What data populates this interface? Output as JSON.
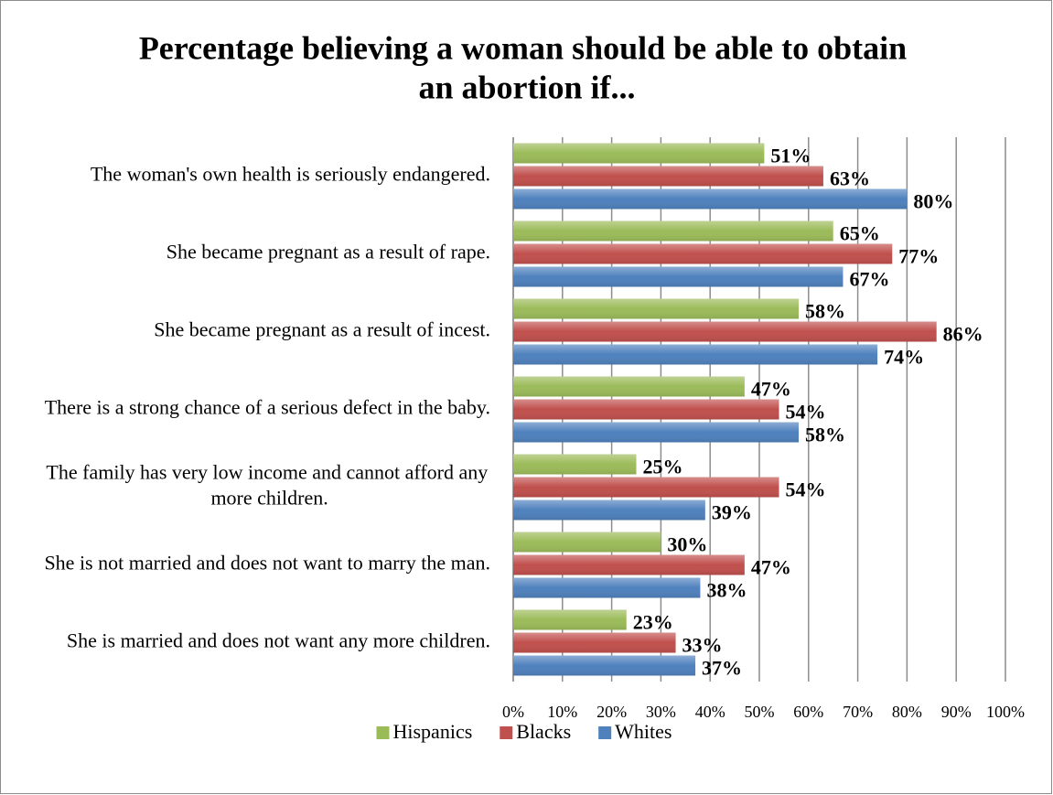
{
  "chart_data": {
    "type": "bar",
    "orientation": "horizontal",
    "title": "Percentage believing a woman should be able to obtain an abortion if...",
    "categories": [
      "The woman's own health is seriously endangered.",
      "She became pregnant as a result of rape.",
      "She became pregnant as a result of incest.",
      "There is a strong chance of a serious defect in the baby.",
      "The family has very low income and cannot afford any more children.",
      "She is not married and does not want to marry the man.",
      "She is married and does not want any more children."
    ],
    "series": [
      {
        "name": "Hispanics",
        "color": "#9bbb59",
        "values": [
          51,
          65,
          58,
          47,
          25,
          30,
          23
        ],
        "value_labels": [
          "51%",
          "65%",
          "58%",
          "47%",
          "25%",
          "30%",
          "23%"
        ]
      },
      {
        "name": "Blacks",
        "color": "#c0504d",
        "values": [
          63,
          77,
          86,
          54,
          54,
          47,
          33
        ],
        "value_labels": [
          "63%",
          "77%",
          "86%",
          "54%",
          "54%",
          "47%",
          "33%"
        ]
      },
      {
        "name": "Whites",
        "color": "#4f81bd",
        "values": [
          80,
          67,
          74,
          58,
          39,
          38,
          37
        ],
        "value_labels": [
          "80%",
          "67%",
          "74%",
          "58%",
          "39%",
          "38%",
          "37%"
        ]
      }
    ],
    "xlim": [
      0,
      100
    ],
    "xticks": [
      {
        "value": 0,
        "label": "0%"
      },
      {
        "value": 10,
        "label": "10%"
      },
      {
        "value": 20,
        "label": "20%"
      },
      {
        "value": 30,
        "label": "30%"
      },
      {
        "value": 40,
        "label": "40%"
      },
      {
        "value": 50,
        "label": "50%"
      },
      {
        "value": 60,
        "label": "60%"
      },
      {
        "value": 70,
        "label": "70%"
      },
      {
        "value": 80,
        "label": "80%"
      },
      {
        "value": 90,
        "label": "90%"
      },
      {
        "value": 100,
        "label": "100%"
      }
    ],
    "grid": true,
    "legend": "bottom"
  }
}
